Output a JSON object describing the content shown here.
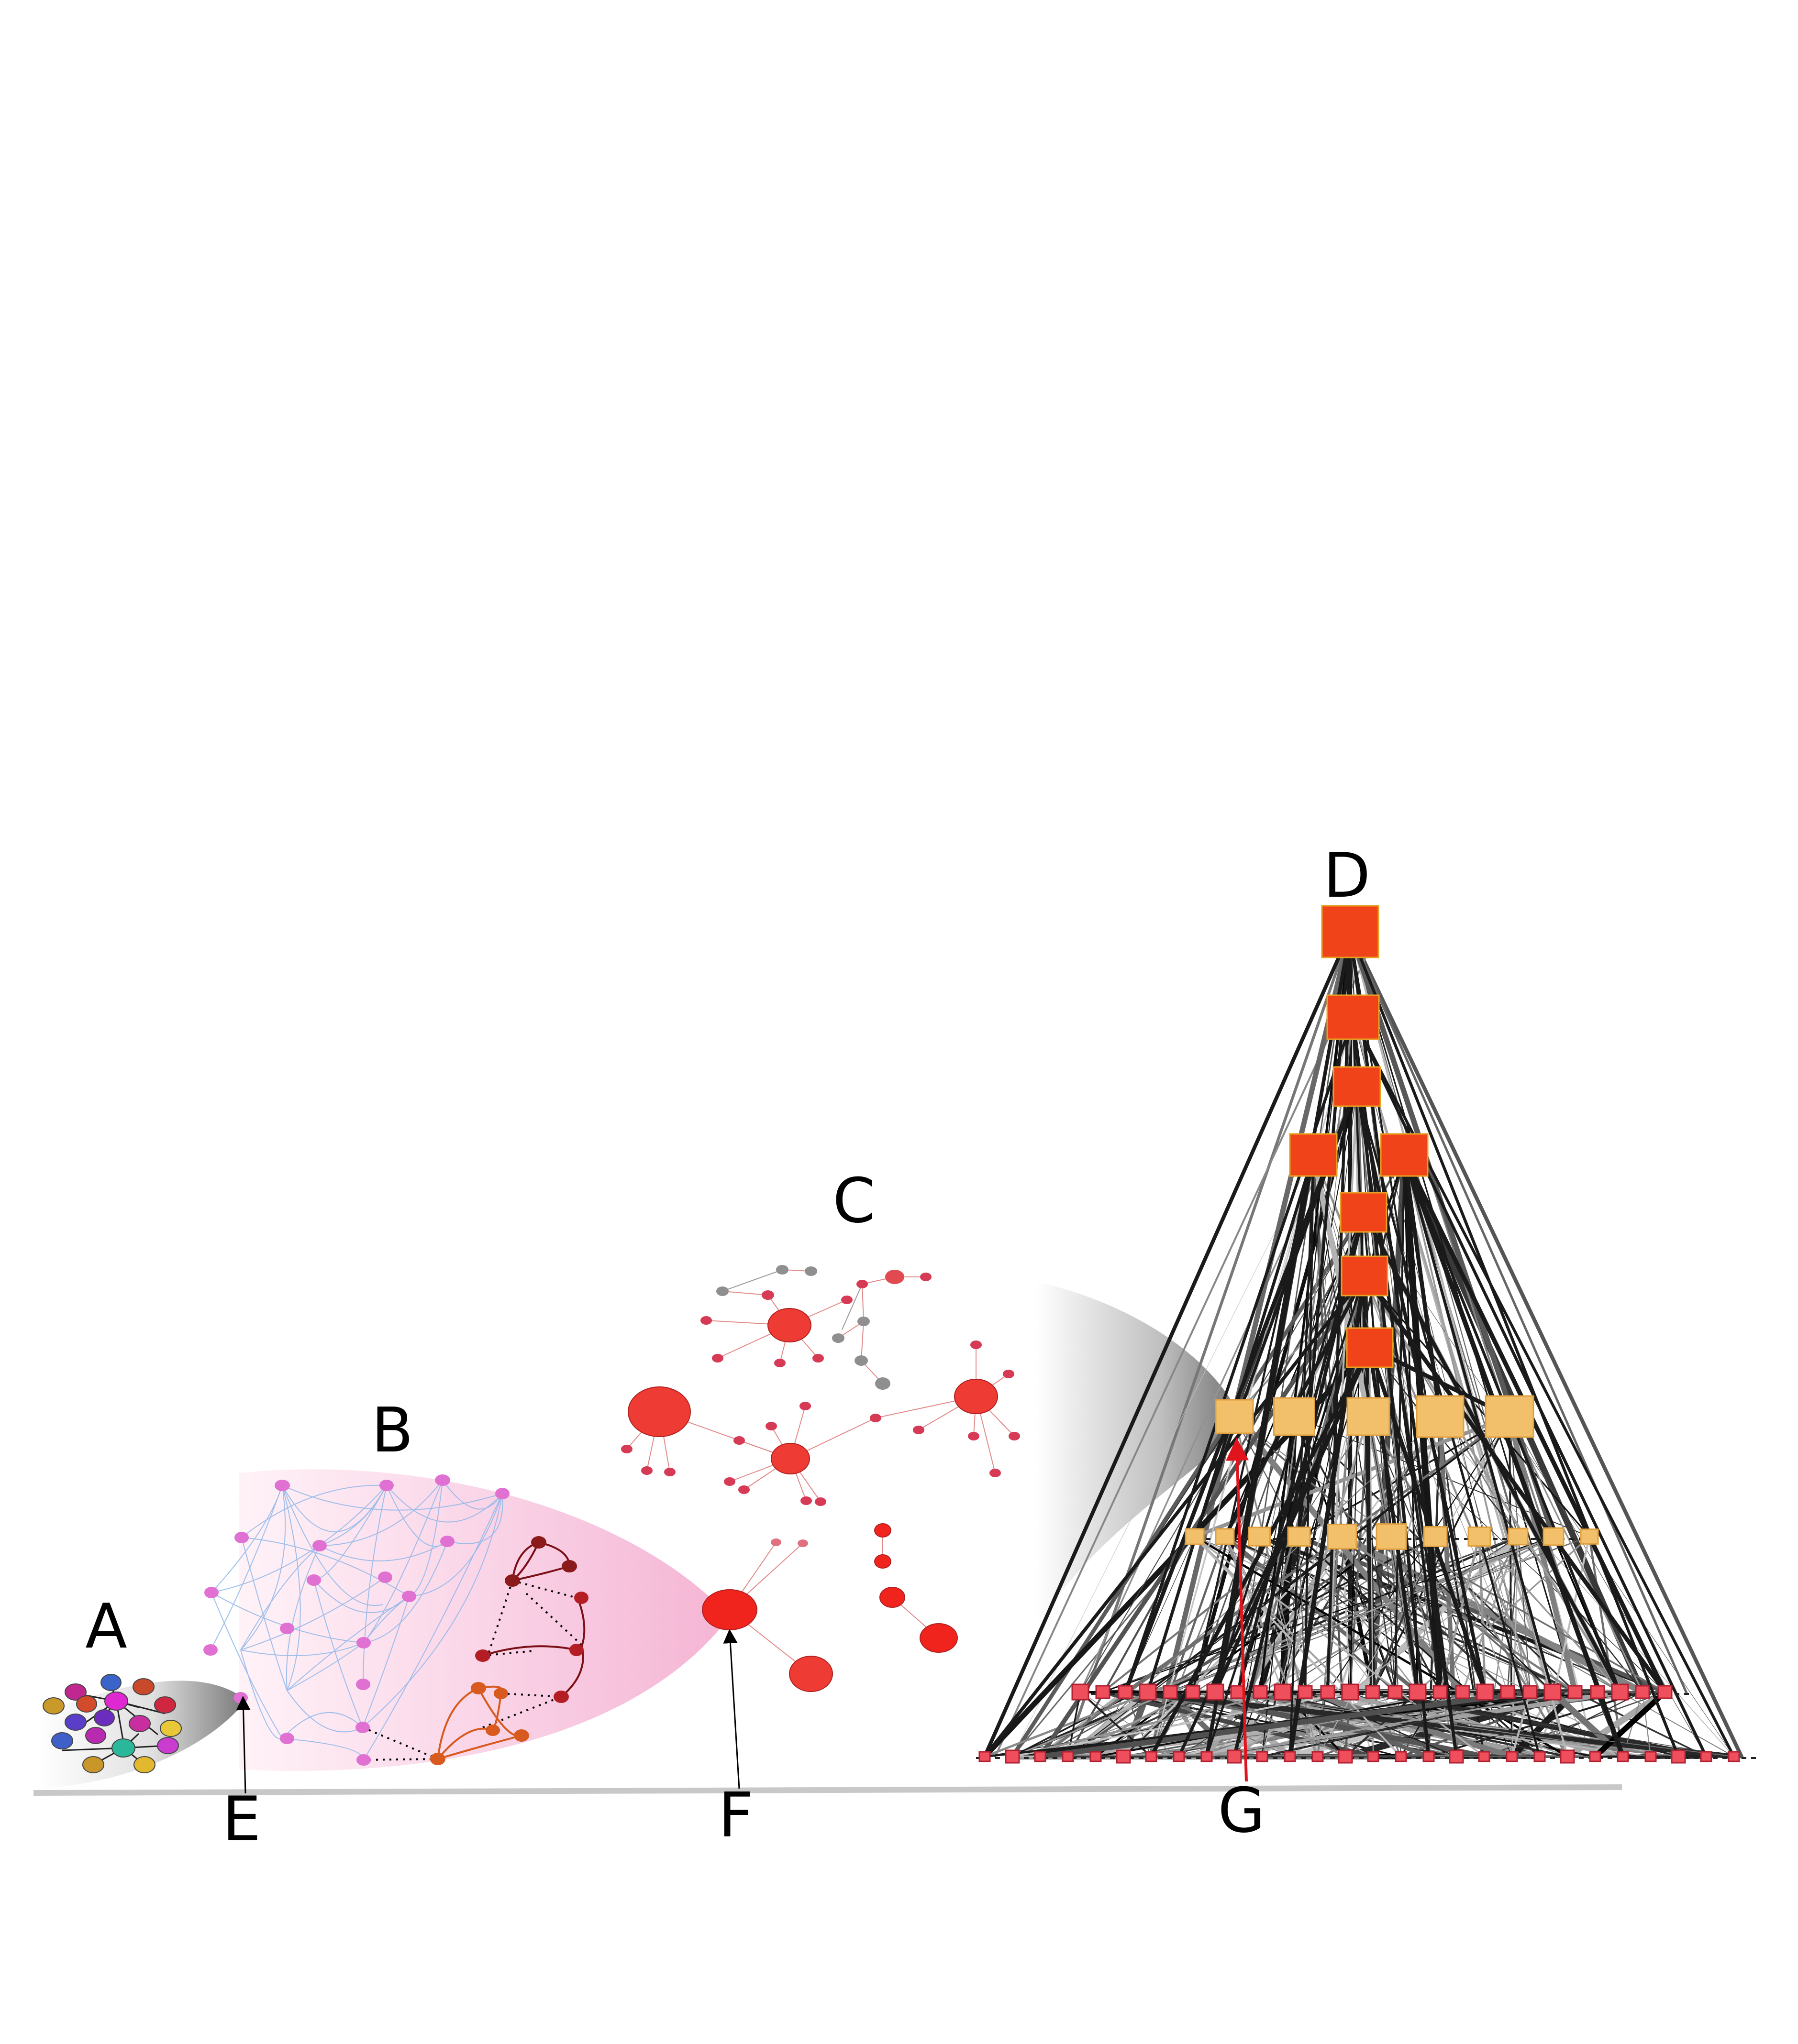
{
  "labels": {
    "a": "A",
    "b": "B",
    "c": "C",
    "d": "D",
    "e": "E",
    "f": "F",
    "g": "G"
  },
  "colors": {
    "hierarchy_top": "#f0431a",
    "hierarchy_mid": "#f2c06a",
    "hierarchy_base": "#ef4f5c",
    "network_b_nodes": "#e070d2",
    "network_b_edges": "#8fb7ea",
    "network_c_nodes": "#ee3b33",
    "edges_d": "#222222",
    "pointer_g": "#e0141c"
  }
}
